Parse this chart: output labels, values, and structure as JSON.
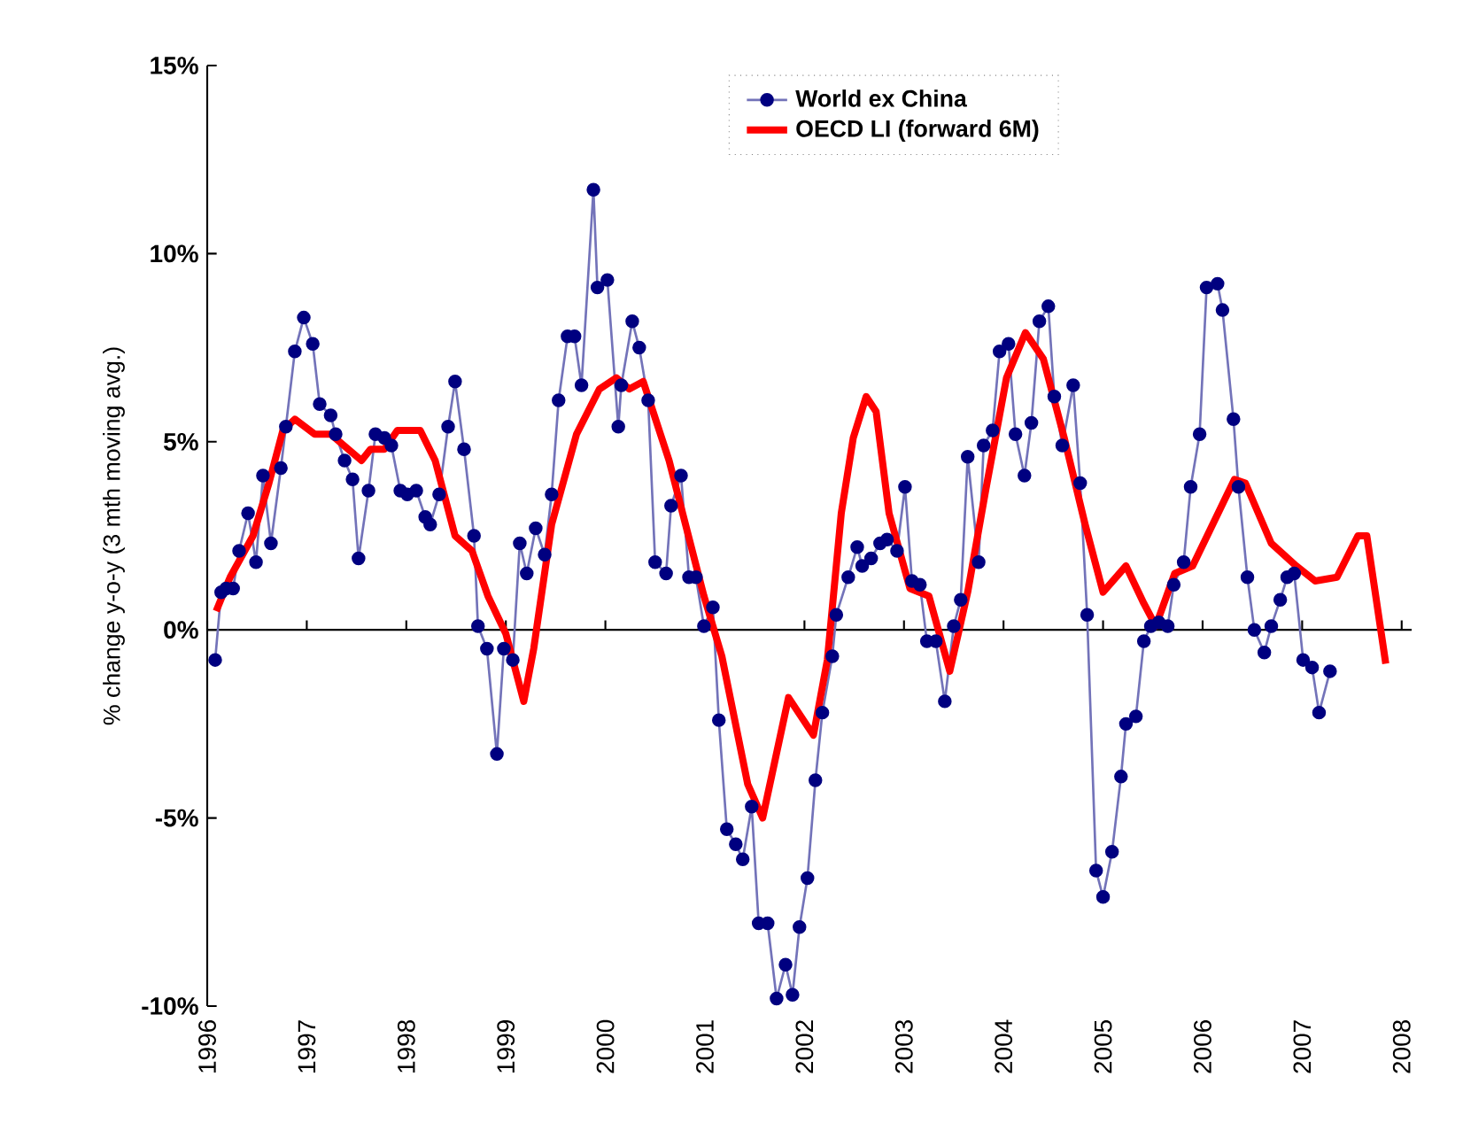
{
  "chart_data": {
    "type": "line",
    "ylabel": "% change y-o-y (3 mth moving avg.)",
    "xlim": [
      1996,
      2008.1
    ],
    "xticks": [
      1996,
      1997,
      1998,
      1999,
      2000,
      2001,
      2002,
      2003,
      2004,
      2005,
      2006,
      2007,
      2008
    ],
    "ylim": [
      -10,
      15
    ],
    "yticks": [
      {
        "value": -10,
        "label": "-10%"
      },
      {
        "value": -5,
        "label": "-5%"
      },
      {
        "value": 0,
        "label": "0%"
      },
      {
        "value": 5,
        "label": "5%"
      },
      {
        "value": 10,
        "label": "10%"
      },
      {
        "value": 15,
        "label": "15%"
      }
    ],
    "legend": "top",
    "series": [
      {
        "name": "World ex China",
        "color": "#000080",
        "marker": "circle",
        "x": [
          1996.08,
          1996.14,
          1996.19,
          1996.26,
          1996.32,
          1996.41,
          1996.49,
          1996.56,
          1996.64,
          1996.74,
          1996.79,
          1996.88,
          1996.97,
          1997.06,
          1997.13,
          1997.24,
          1997.29,
          1997.38,
          1997.46,
          1997.52,
          1997.62,
          1997.69,
          1997.78,
          1997.85,
          1997.94,
          1998.01,
          1998.1,
          1998.19,
          1998.24,
          1998.33,
          1998.42,
          1998.49,
          1998.58,
          1998.68,
          1998.72,
          1998.81,
          1998.91,
          1998.98,
          1999.07,
          1999.14,
          1999.21,
          1999.3,
          1999.39,
          1999.46,
          1999.53,
          1999.62,
          1999.69,
          1999.76,
          1999.88,
          1999.92,
          2000.02,
          2000.13,
          2000.16,
          2000.27,
          2000.34,
          2000.43,
          2000.5,
          2000.61,
          2000.66,
          2000.76,
          2000.84,
          2000.91,
          2000.99,
          2001.08,
          2001.14,
          2001.22,
          2001.31,
          2001.38,
          2001.47,
          2001.54,
          2001.63,
          2001.72,
          2001.81,
          2001.88,
          2001.95,
          2002.03,
          2002.11,
          2002.18,
          2002.28,
          2002.32,
          2002.44,
          2002.53,
          2002.58,
          2002.67,
          2002.76,
          2002.83,
          2002.93,
          2003.01,
          2003.08,
          2003.16,
          2003.23,
          2003.32,
          2003.41,
          2003.5,
          2003.57,
          2003.64,
          2003.75,
          2003.8,
          2003.89,
          2003.96,
          2004.05,
          2004.12,
          2004.21,
          2004.28,
          2004.36,
          2004.45,
          2004.51,
          2004.59,
          2004.7,
          2004.77,
          2004.84,
          2004.93,
          2005.0,
          2005.09,
          2005.18,
          2005.23,
          2005.33,
          2005.41,
          2005.48,
          2005.56,
          2005.65,
          2005.71,
          2005.81,
          2005.88,
          2005.97,
          2006.04,
          2006.15,
          2006.2,
          2006.31,
          2006.36,
          2006.45,
          2006.52,
          2006.62,
          2006.69,
          2006.78,
          2006.85,
          2006.92,
          2007.01,
          2007.1,
          2007.17,
          2007.28
        ],
        "values": [
          -0.8,
          1.0,
          1.1,
          1.1,
          2.1,
          3.1,
          1.8,
          4.1,
          2.3,
          4.3,
          5.4,
          7.4,
          8.3,
          7.6,
          6.0,
          5.7,
          5.2,
          4.5,
          4.0,
          1.9,
          3.7,
          5.2,
          5.1,
          4.9,
          3.7,
          3.6,
          3.7,
          3.0,
          2.8,
          3.6,
          5.4,
          6.6,
          4.8,
          2.5,
          0.1,
          -0.5,
          -3.3,
          -0.5,
          -0.8,
          2.3,
          1.5,
          2.7,
          2.0,
          3.6,
          6.1,
          7.8,
          7.8,
          6.5,
          11.7,
          9.1,
          9.3,
          5.4,
          6.5,
          8.2,
          7.5,
          6.1,
          1.8,
          1.5,
          3.3,
          4.1,
          1.4,
          1.4,
          0.1,
          0.6,
          -2.4,
          -5.3,
          -5.7,
          -6.1,
          -4.7,
          -7.8,
          -7.8,
          -9.8,
          -8.9,
          -9.7,
          -7.9,
          -6.6,
          -4.0,
          -2.2,
          -0.7,
          0.4,
          1.4,
          2.2,
          1.7,
          1.9,
          2.3,
          2.4,
          2.1,
          3.8,
          1.3,
          1.2,
          -0.3,
          -0.3,
          -1.9,
          0.1,
          0.8,
          4.6,
          1.8,
          4.9,
          5.3,
          7.4,
          7.6,
          5.2,
          4.1,
          5.5,
          8.2,
          8.6,
          6.2,
          4.9,
          6.5,
          3.9,
          0.4,
          -6.4,
          -7.1,
          -5.9,
          -3.9,
          -2.5,
          -2.3,
          -0.3,
          0.1,
          0.2,
          0.1,
          1.2,
          1.8,
          3.8,
          5.2,
          9.1,
          9.2,
          8.5,
          5.6,
          3.8,
          1.4,
          0.0,
          -0.6,
          0.1,
          0.8,
          1.4,
          1.5,
          -0.8,
          -1.0,
          -2.2,
          -1.1
        ]
      },
      {
        "name": "OECD LI (forward 6M)",
        "color": "#ff0000",
        "marker": "none",
        "x": [
          1996.09,
          1996.23,
          1996.46,
          1996.62,
          1996.76,
          1996.88,
          1997.08,
          1997.24,
          1997.55,
          1997.64,
          1997.78,
          1997.91,
          1998.14,
          1998.29,
          1998.49,
          1998.66,
          1998.82,
          1999.0,
          1999.18,
          1999.28,
          1999.46,
          1999.71,
          1999.94,
          2000.11,
          2000.24,
          2000.38,
          2000.64,
          2000.99,
          2001.17,
          2001.43,
          2001.58,
          2001.84,
          2002.09,
          2002.23,
          2002.37,
          2002.49,
          2002.62,
          2002.72,
          2002.85,
          2003.06,
          2003.25,
          2003.46,
          2003.64,
          2003.82,
          2004.03,
          2004.22,
          2004.4,
          2004.61,
          2004.82,
          2005.0,
          2005.23,
          2005.41,
          2005.53,
          2005.72,
          2005.9,
          2006.32,
          2006.43,
          2006.69,
          2006.94,
          2007.13,
          2007.35,
          2007.56,
          2007.65,
          2007.84
        ],
        "values": [
          0.5,
          1.4,
          2.5,
          3.9,
          5.3,
          5.6,
          5.2,
          5.2,
          4.5,
          4.8,
          4.8,
          5.3,
          5.3,
          4.5,
          2.5,
          2.1,
          0.9,
          -0.1,
          -1.9,
          -0.5,
          2.8,
          5.2,
          6.4,
          6.7,
          6.4,
          6.6,
          4.5,
          0.9,
          -0.7,
          -4.1,
          -5.0,
          -1.8,
          -2.8,
          -0.8,
          3.1,
          5.1,
          6.2,
          5.8,
          3.1,
          1.1,
          0.9,
          -1.1,
          1.0,
          3.7,
          6.7,
          7.9,
          7.2,
          5.1,
          2.8,
          1.0,
          1.7,
          0.7,
          0.1,
          1.5,
          1.7,
          4.0,
          3.9,
          2.3,
          1.7,
          1.3,
          1.4,
          2.5,
          2.5,
          -0.9
        ]
      }
    ]
  }
}
